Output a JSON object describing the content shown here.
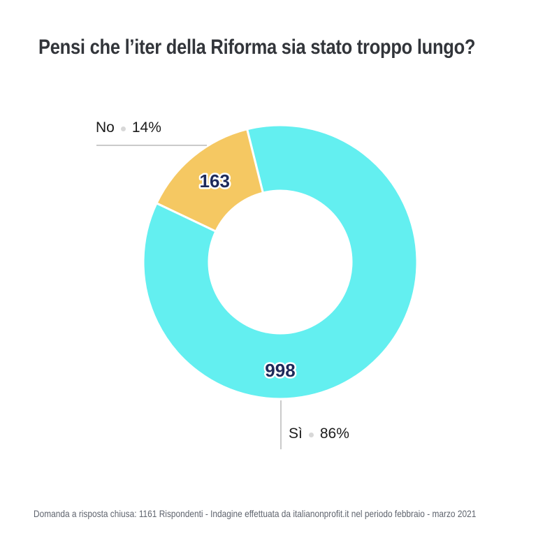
{
  "title": "Pensi che l’iter della Riforma sia stato troppo lungo?",
  "footer": "Domanda a risposta chiusa: 1161 Rispondenti - Indagine effettuata da italianonprofit.it nel periodo febbraio - marzo 2021",
  "chart_data": {
    "type": "pie",
    "subtype": "donut",
    "title": "Pensi che l’iter della Riforma sia stato troppo lungo?",
    "categories": [
      "Sì",
      "No"
    ],
    "values": [
      998,
      163
    ],
    "percent_labels": [
      "86%",
      "14%"
    ],
    "total_respondents": 1161,
    "colors": [
      "#63EFF0",
      "#F5C862"
    ],
    "value_label_color": "#1E2A5B",
    "legend_position": "none",
    "layout": {
      "center": [
        401,
        375
      ],
      "outer_radius": 196,
      "inner_radius": 102,
      "start_angle_deg": -14,
      "clockwise": true,
      "slice_gap_color": "#FFFFFF",
      "slice_gap_width": 3,
      "value_label_angles_deg": [
        180,
        321
      ],
      "value_label_radii": [
        155,
        149
      ]
    }
  }
}
